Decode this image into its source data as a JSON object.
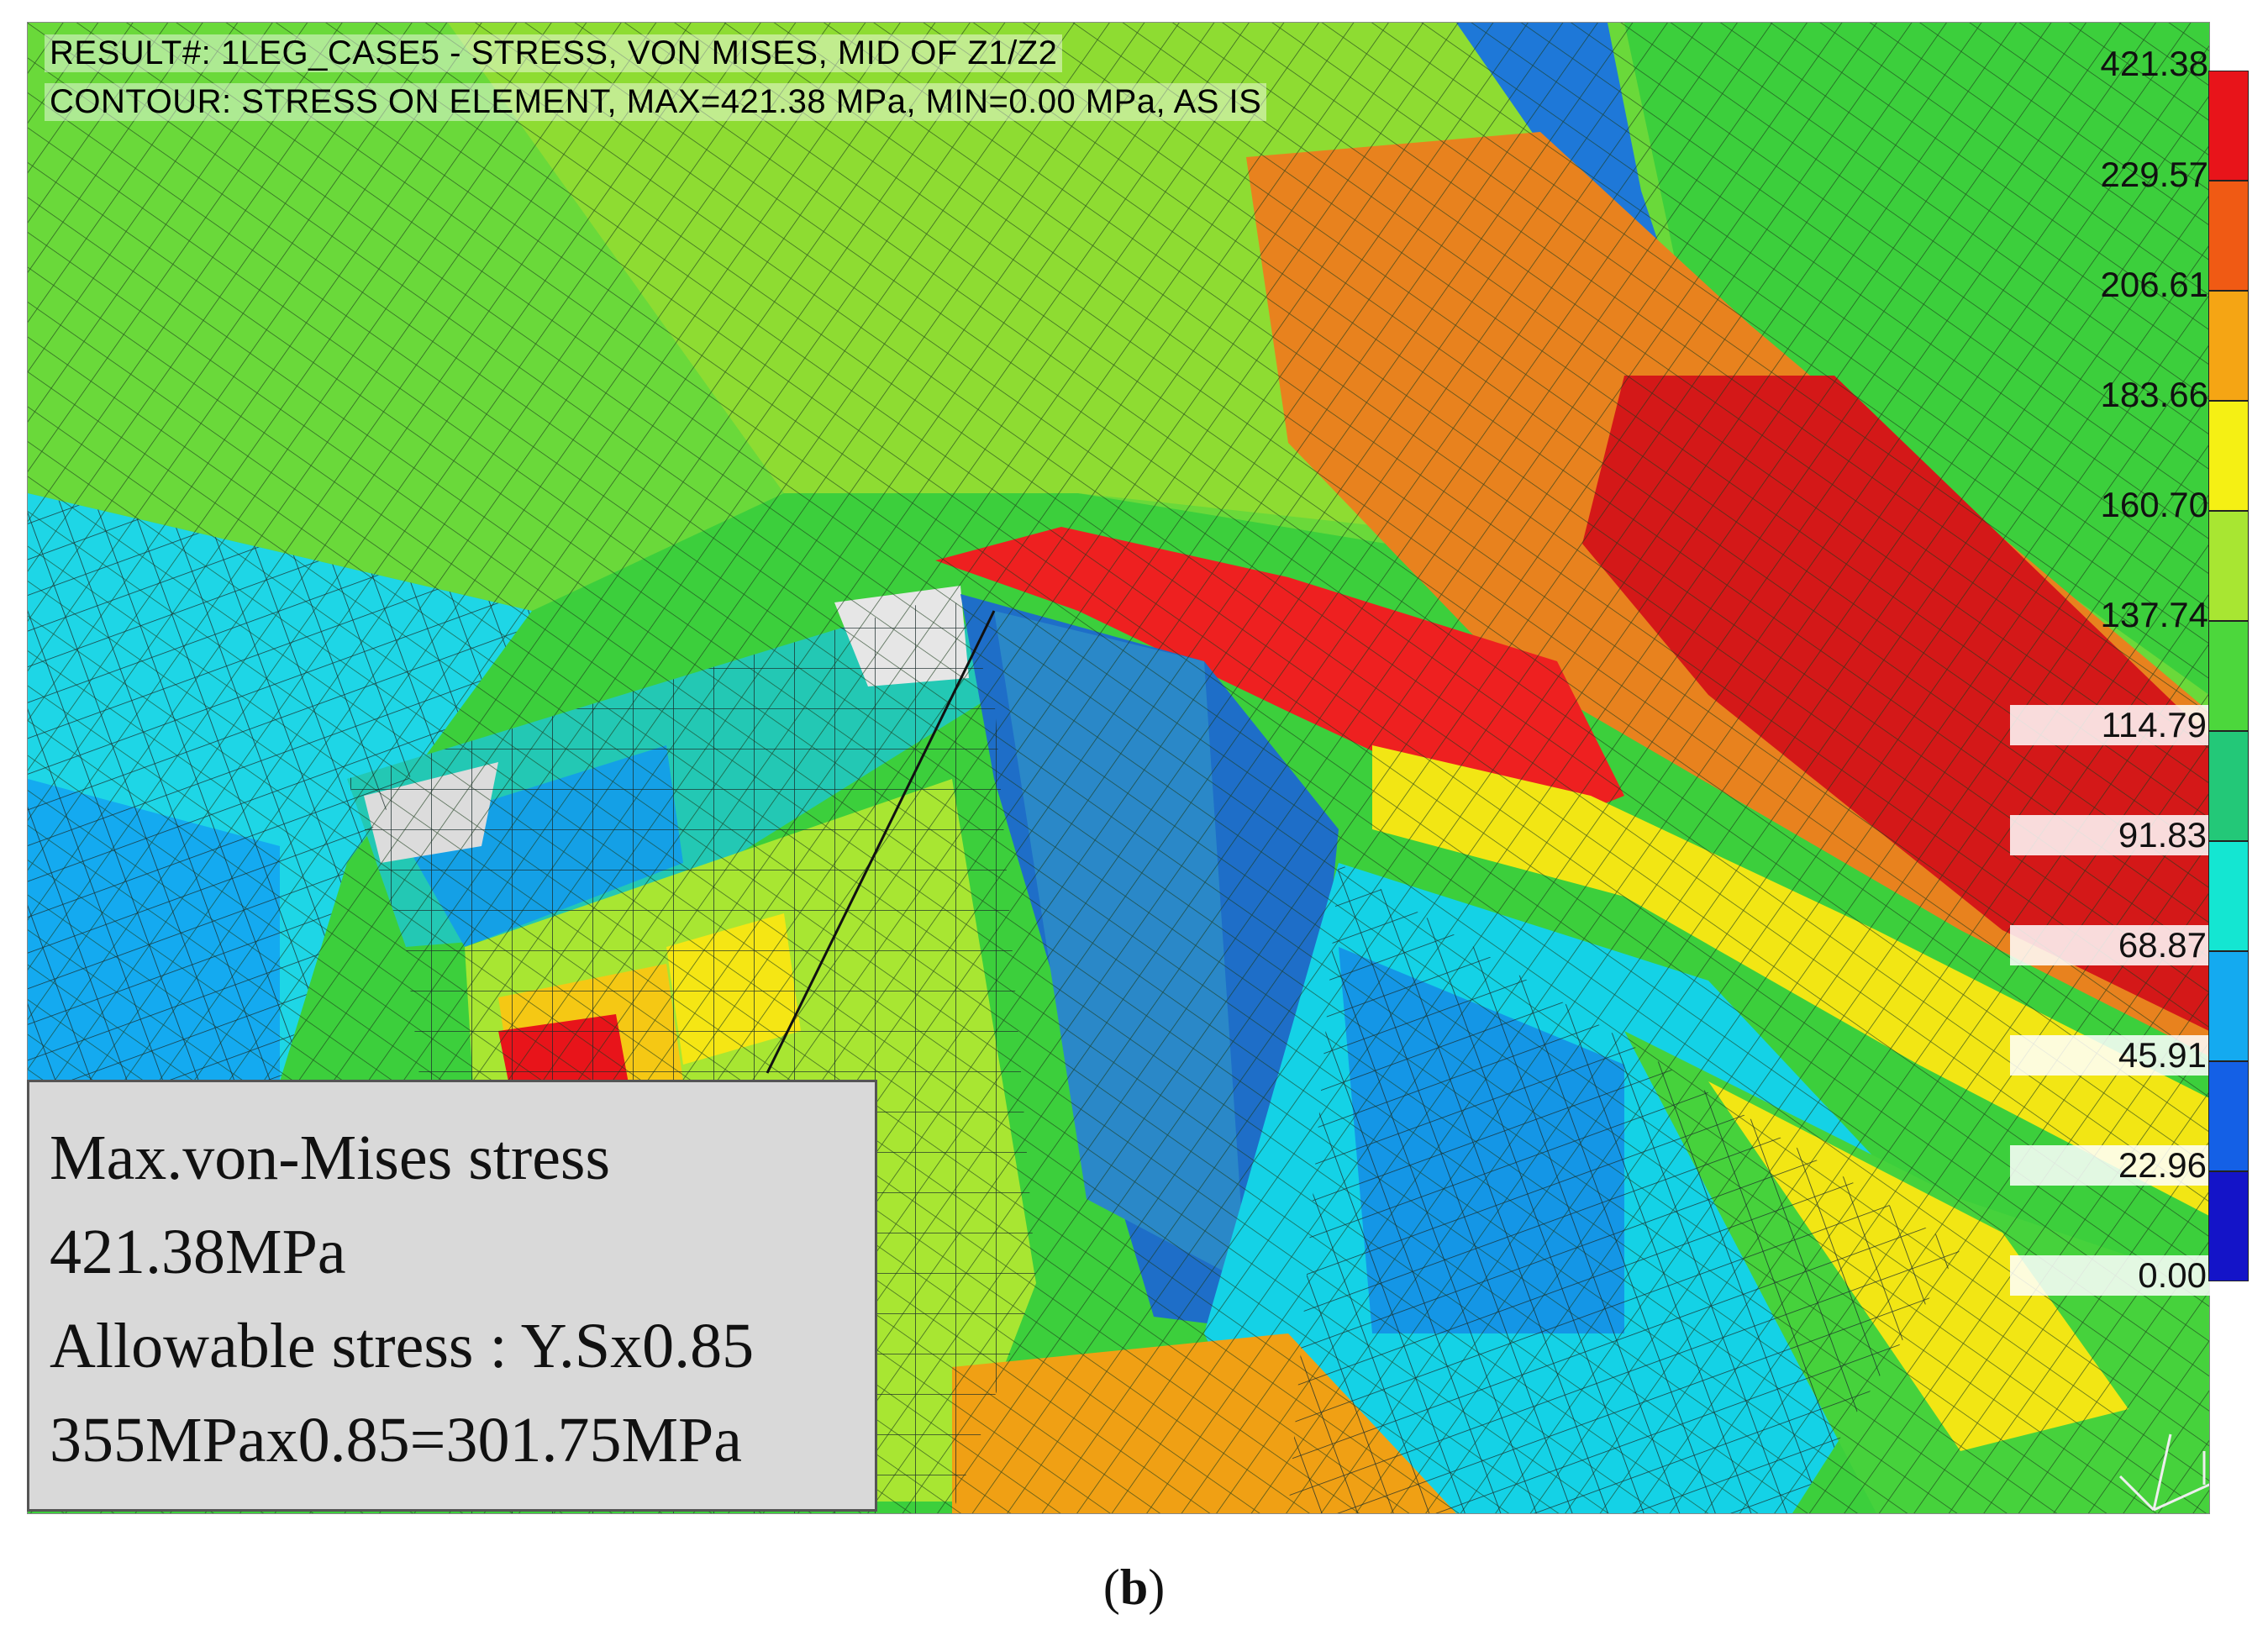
{
  "title": {
    "line1": "RESULT#: 1LEG_CASE5 - STRESS, VON MISES, MID OF Z1/Z2",
    "line2": "CONTOUR: STRESS ON ELEMENT, MAX=421.38 MPa, MIN=0.00 MPa, AS IS"
  },
  "legend": {
    "labels": [
      "421.38",
      "229.57",
      "206.61",
      "183.66",
      "160.70",
      "137.74",
      "114.79",
      "91.83",
      "68.87",
      "45.91",
      "22.96",
      "0.00"
    ],
    "colors": [
      "#e8141a",
      "#f05a14",
      "#f5a514",
      "#f5f014",
      "#a8e632",
      "#4cd73c",
      "#23c878",
      "#14e6d2",
      "#14aaf0",
      "#1460e6",
      "#1414c8"
    ]
  },
  "info_box": {
    "line1": "Max.von-Mises stress",
    "line2": "421.38MPa",
    "line3": "Allowable stress : Y.Sx0.85",
    "line4": "355MPax0.85=301.75MPa"
  },
  "caption": {
    "open": "(",
    "letter": "b",
    "close": ")"
  }
}
